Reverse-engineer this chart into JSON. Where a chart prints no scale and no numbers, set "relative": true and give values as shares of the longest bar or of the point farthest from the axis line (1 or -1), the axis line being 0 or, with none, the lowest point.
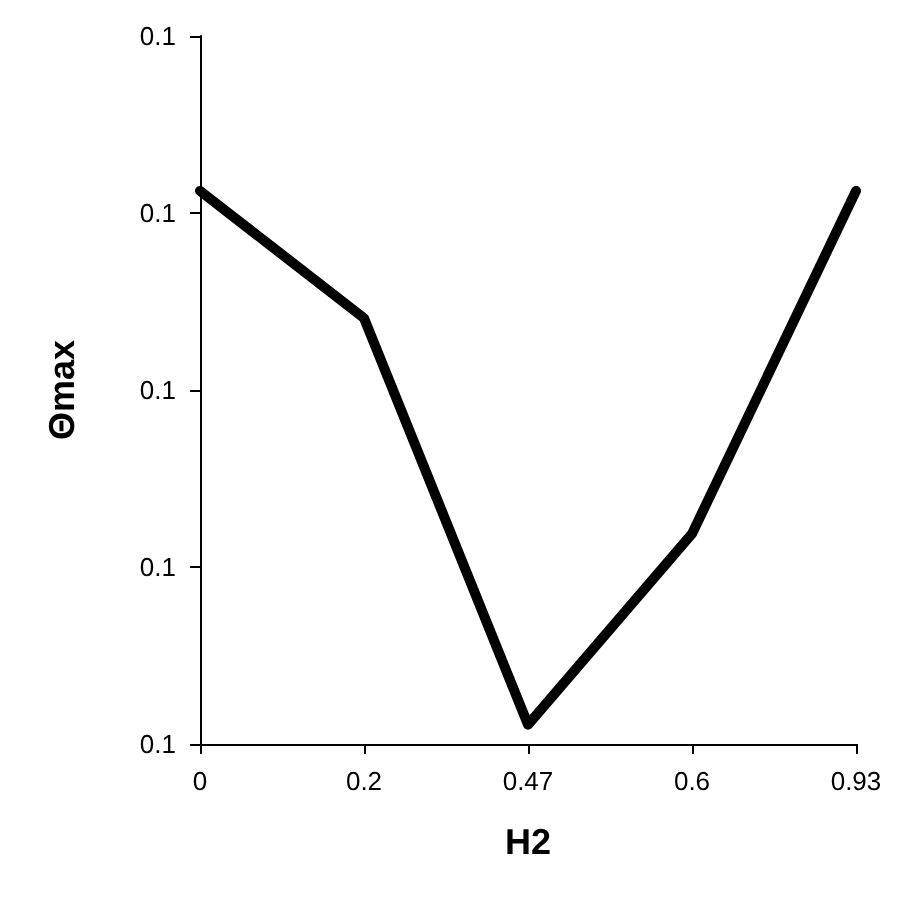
{
  "chart_data": {
    "type": "line",
    "xlabel": "H2",
    "ylabel": "Θmax",
    "categories": [
      "0",
      "0.2",
      "0.47",
      "0.6",
      "0.93"
    ],
    "series": [
      {
        "color": "#000000",
        "values": [
          1,
          0.77,
          0.035,
          0.38,
          1
        ]
      }
    ],
    "relative": true,
    "annotations": [
      "0.1",
      "0.1",
      "0.1",
      "0.1",
      "0.1"
    ],
    "grid": false,
    "marker": "none",
    "line_style": "solid"
  }
}
